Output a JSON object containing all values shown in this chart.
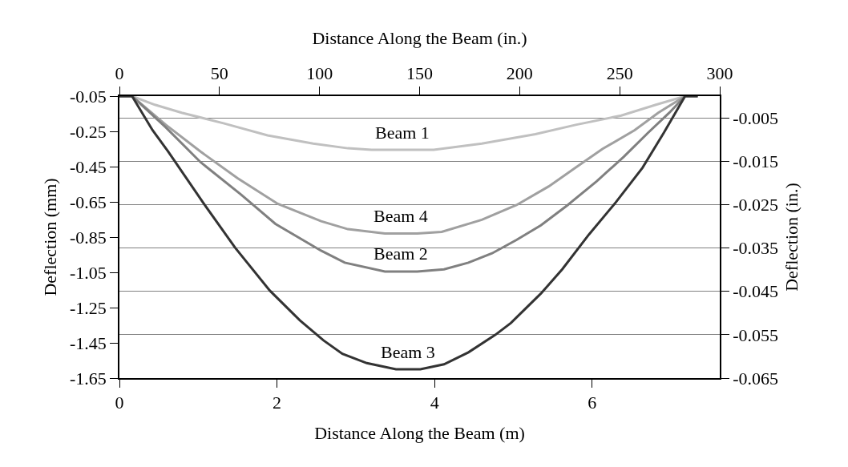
{
  "chart_data": {
    "type": "line",
    "xlabel": "Distance Along the Beam (m)",
    "x2label": "Distance Along the Beam (in.)",
    "ylabel": "Deflection (mm)",
    "y2label": "Deflection (in.)",
    "xlim": [
      0,
      7.62
    ],
    "xticks": [
      0,
      2,
      4,
      6
    ],
    "x2lim": [
      0,
      300
    ],
    "x2ticks": [
      0,
      50,
      100,
      150,
      200,
      250,
      300
    ],
    "ylim": [
      -1.65,
      -0.05
    ],
    "yticks": [
      -0.05,
      -0.25,
      -0.45,
      -0.65,
      -0.85,
      -1.05,
      -1.25,
      -1.45,
      -1.65
    ],
    "y2lim": [
      -0.065,
      0
    ],
    "y2ticks": [
      -0.005,
      -0.015,
      -0.025,
      -0.035,
      -0.045,
      -0.055,
      -0.065
    ],
    "grid": "y2",
    "legend": false,
    "marker": "none",
    "line_style": "solid",
    "series": [
      {
        "name": "Beam 1",
        "color": "#c0c0c0",
        "x": [
          0,
          0.16,
          0.45,
          0.79,
          1.33,
          1.88,
          2.46,
          2.9,
          3.2,
          3.99,
          4.6,
          5.28,
          5.79,
          6.37,
          6.81,
          7.18,
          7.34
        ],
        "values": [
          -0.05,
          -0.05,
          -0.099,
          -0.144,
          -0.205,
          -0.273,
          -0.319,
          -0.346,
          -0.355,
          -0.355,
          -0.319,
          -0.266,
          -0.213,
          -0.16,
          -0.099,
          -0.05,
          -0.05
        ]
      },
      {
        "name": "Beam 4",
        "color": "#a0a0a0",
        "x": [
          0,
          0.16,
          0.59,
          1.03,
          1.5,
          2.01,
          2.56,
          2.9,
          3.37,
          3.78,
          4.09,
          4.6,
          5.04,
          5.45,
          5.79,
          6.13,
          6.54,
          6.84,
          7.18,
          7.34
        ],
        "values": [
          -0.05,
          -0.05,
          -0.213,
          -0.365,
          -0.516,
          -0.661,
          -0.76,
          -0.805,
          -0.83,
          -0.83,
          -0.82,
          -0.752,
          -0.668,
          -0.562,
          -0.456,
          -0.35,
          -0.243,
          -0.144,
          -0.05,
          -0.05
        ]
      },
      {
        "name": "Beam 2",
        "color": "#808080",
        "x": [
          0,
          0.16,
          0.59,
          1.03,
          1.54,
          1.98,
          2.56,
          2.86,
          3.37,
          3.78,
          4.12,
          4.43,
          4.73,
          5.04,
          5.35,
          5.69,
          6.06,
          6.4,
          6.71,
          6.98,
          7.18,
          7.34
        ],
        "values": [
          -0.05,
          -0.05,
          -0.228,
          -0.425,
          -0.607,
          -0.775,
          -0.927,
          -0.995,
          -1.045,
          -1.045,
          -1.033,
          -0.995,
          -0.942,
          -0.866,
          -0.783,
          -0.668,
          -0.532,
          -0.395,
          -0.258,
          -0.144,
          -0.05,
          -0.05
        ]
      },
      {
        "name": "Beam 3",
        "color": "#333333",
        "x": [
          0,
          0.16,
          0.42,
          0.62,
          1.06,
          1.47,
          1.91,
          2.29,
          2.59,
          2.83,
          3.14,
          3.51,
          3.82,
          4.12,
          4.43,
          4.77,
          4.97,
          5.35,
          5.62,
          5.96,
          6.3,
          6.64,
          6.91,
          7.18,
          7.34
        ],
        "values": [
          -0.05,
          -0.05,
          -0.243,
          -0.365,
          -0.653,
          -0.911,
          -1.154,
          -1.322,
          -1.436,
          -1.512,
          -1.565,
          -1.6,
          -1.6,
          -1.572,
          -1.504,
          -1.405,
          -1.337,
          -1.17,
          -1.033,
          -0.835,
          -0.653,
          -0.456,
          -0.258,
          -0.05,
          -0.05
        ]
      }
    ]
  }
}
